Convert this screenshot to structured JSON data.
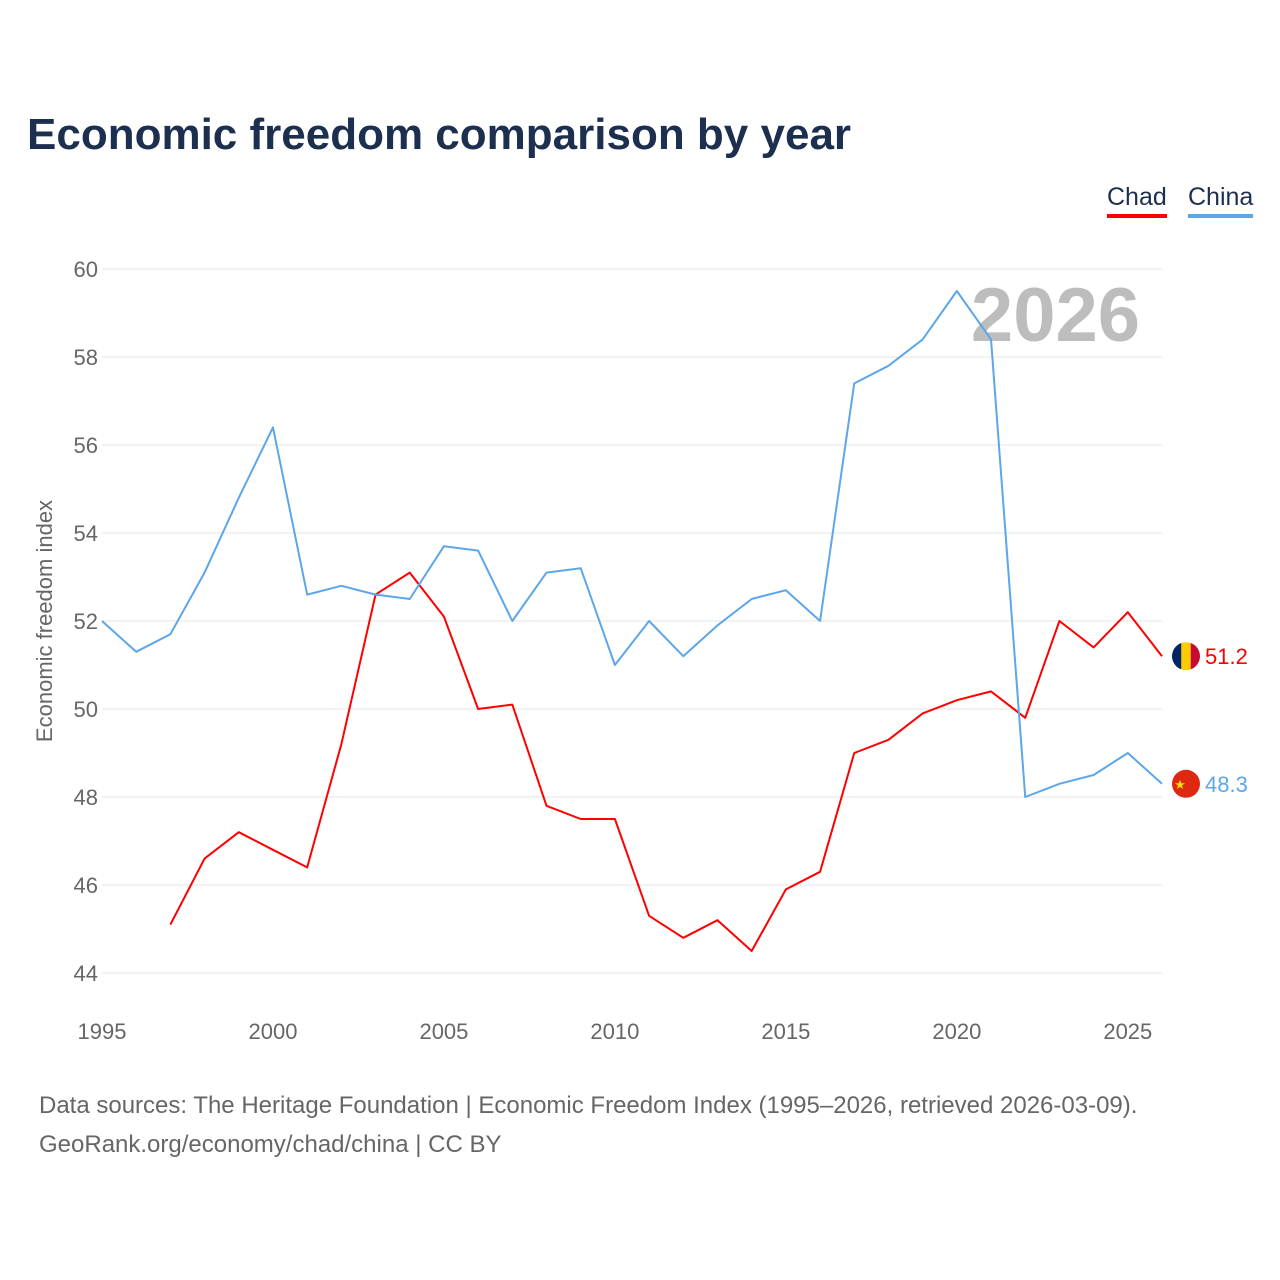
{
  "title": "Economic freedom comparison by year",
  "legend": [
    {
      "label": "Chad",
      "color": "#ff0000"
    },
    {
      "label": "China",
      "color": "#5ca6ea"
    }
  ],
  "source_line1": "Data sources: The Heritage Foundation | Economic Freedom Index (1995–2026, retrieved 2026-03-09).",
  "source_line2": "GeoRank.org/economy/chad/china | CC BY",
  "chart_data": {
    "type": "line",
    "title": "Economic freedom comparison by year",
    "xlabel": "",
    "ylabel": "Economic freedom index",
    "year_watermark": "2026",
    "xlim": [
      1995,
      2026
    ],
    "ylim": [
      44,
      60
    ],
    "xticks": [
      1995,
      2000,
      2005,
      2010,
      2015,
      2020,
      2025
    ],
    "yticks": [
      44,
      46,
      48,
      50,
      52,
      54,
      56,
      58,
      60
    ],
    "grid": true,
    "legend_position": "top-right",
    "series": [
      {
        "name": "Chad",
        "color": "#ff0000",
        "end_label": "51.2",
        "flag": "chad-flag",
        "x": [
          1997,
          1998,
          1999,
          2000,
          2001,
          2002,
          2003,
          2004,
          2005,
          2006,
          2007,
          2008,
          2009,
          2010,
          2011,
          2012,
          2013,
          2014,
          2015,
          2016,
          2017,
          2018,
          2019,
          2020,
          2021,
          2022,
          2023,
          2024,
          2025,
          2026
        ],
        "y": [
          45.1,
          46.6,
          47.2,
          46.8,
          46.4,
          49.2,
          52.6,
          53.1,
          52.1,
          50.0,
          50.1,
          47.8,
          47.5,
          47.5,
          45.3,
          44.8,
          45.2,
          44.5,
          45.9,
          46.3,
          49.0,
          49.3,
          49.9,
          50.2,
          50.4,
          49.8,
          52.0,
          51.4,
          52.2,
          51.2
        ]
      },
      {
        "name": "China",
        "color": "#5ca6ea",
        "end_label": "48.3",
        "flag": "china-flag",
        "x": [
          1995,
          1996,
          1997,
          1998,
          1999,
          2000,
          2001,
          2002,
          2003,
          2004,
          2005,
          2006,
          2007,
          2008,
          2009,
          2010,
          2011,
          2012,
          2013,
          2014,
          2015,
          2016,
          2017,
          2018,
          2019,
          2020,
          2021,
          2022,
          2023,
          2024,
          2025,
          2026
        ],
        "y": [
          52.0,
          51.3,
          51.7,
          53.1,
          54.8,
          56.4,
          52.6,
          52.8,
          52.6,
          52.5,
          53.7,
          53.6,
          52.0,
          53.1,
          53.2,
          51.0,
          52.0,
          51.2,
          51.9,
          52.5,
          52.7,
          52.0,
          57.4,
          57.8,
          58.4,
          59.5,
          58.4,
          48.0,
          48.3,
          48.5,
          49.0,
          48.3
        ]
      }
    ]
  }
}
